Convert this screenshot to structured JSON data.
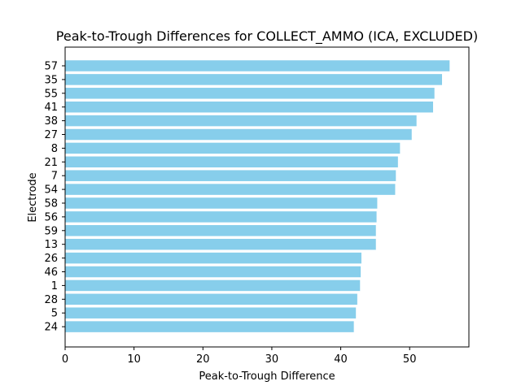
{
  "chart_data": {
    "type": "bar",
    "orientation": "horizontal",
    "title": "Peak-to-Trough Differences for COLLECT_AMMO (ICA, EXCLUDED)",
    "xlabel": "Peak-to-Trough Difference",
    "ylabel": "Electrode",
    "categories": [
      "57",
      "35",
      "55",
      "41",
      "38",
      "27",
      "8",
      "21",
      "7",
      "54",
      "58",
      "56",
      "59",
      "13",
      "26",
      "46",
      "1",
      "28",
      "5",
      "24"
    ],
    "values": [
      55.8,
      54.7,
      53.6,
      53.4,
      51.0,
      50.3,
      48.6,
      48.3,
      48.0,
      47.9,
      45.3,
      45.2,
      45.1,
      45.1,
      43.0,
      42.9,
      42.8,
      42.4,
      42.2,
      41.9
    ],
    "xlim": [
      0,
      58.6
    ],
    "xticks": [
      0,
      10,
      20,
      30,
      40,
      50
    ],
    "bar_color": "#87ceeb",
    "grid": false,
    "legend": false
  }
}
